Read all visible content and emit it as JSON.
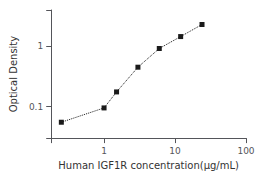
{
  "chart_data": {
    "type": "line",
    "xlabel": "Human IGF1R concentration(μg/mL)",
    "ylabel": "Optical Density",
    "x": [
      0.25,
      1.0,
      1.5,
      3.0,
      6.0,
      12.0,
      24.0
    ],
    "values": [
      0.055,
      0.095,
      0.175,
      0.45,
      0.92,
      1.45,
      2.3
    ],
    "color": "#1a1a1a",
    "marker": "square",
    "line_style": "dotted",
    "log": true,
    "xlim": [
      0.18,
      100
    ],
    "ylim": [
      0.03,
      4
    ],
    "xticks": [
      1,
      10,
      100
    ],
    "yticks": [
      0.1,
      1
    ],
    "grid": false
  }
}
